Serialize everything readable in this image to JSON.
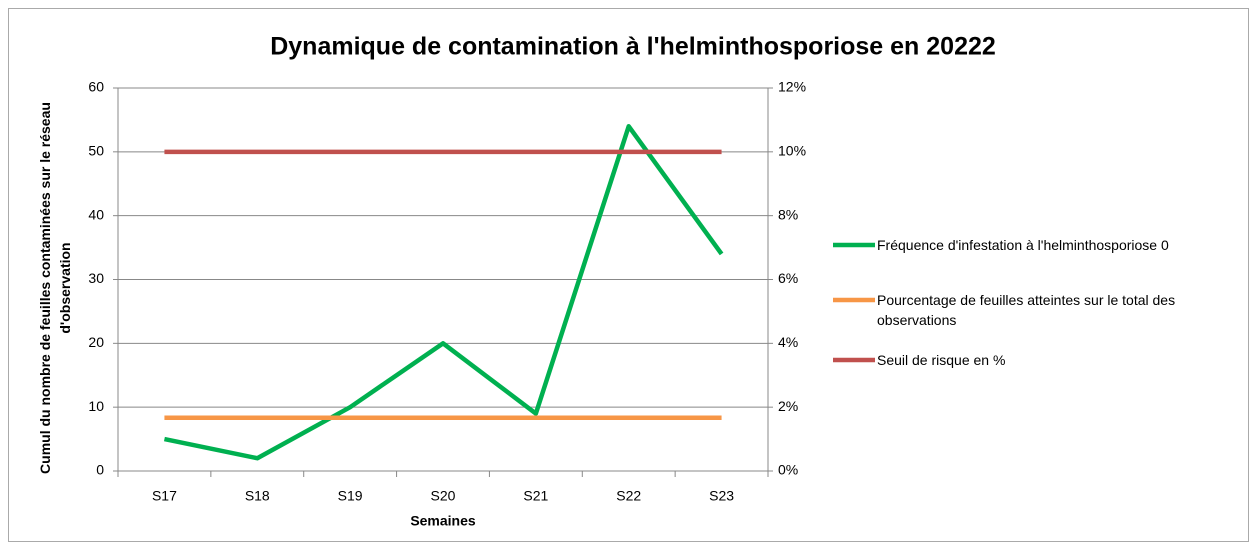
{
  "chart_data": {
    "type": "line",
    "title": "Dynamique de contamination à l'helminthosporiose en 20222",
    "xlabel": "Semaines",
    "ylabel": "Cumul du nombre de feuilles contaminées sur le réseau d'observation",
    "categories": [
      "S17",
      "S18",
      "S19",
      "S20",
      "S21",
      "S22",
      "S23"
    ],
    "series": [
      {
        "name": "Fréquence d'infestation à l'helminthosporiose 0",
        "color": "#00b050",
        "values": [
          5,
          2,
          10,
          20,
          9,
          54,
          34
        ]
      },
      {
        "name": "Pourcentage de feuilles atteintes sur le total des observations",
        "color": "#f79646",
        "axis": "y2",
        "values": [
          1.67,
          1.67,
          1.67,
          1.67,
          1.67,
          1.67,
          1.67
        ]
      },
      {
        "name": "Seuil de risque en %",
        "color": "#c0504d",
        "axis": "y2",
        "values": [
          10,
          10,
          10,
          10,
          10,
          10,
          10
        ]
      }
    ],
    "ylim": [
      0,
      60
    ],
    "yticks": [
      0,
      10,
      20,
      30,
      40,
      50,
      60
    ],
    "y2lim": [
      0,
      12
    ],
    "y2ticks": [
      {
        "value": 0,
        "label": "0%"
      },
      {
        "value": 2,
        "label": "2%"
      },
      {
        "value": 4,
        "label": "4%"
      },
      {
        "value": 6,
        "label": "6%"
      },
      {
        "value": 8,
        "label": "8%"
      },
      {
        "value": 10,
        "label": "10%"
      },
      {
        "value": 12,
        "label": "12%"
      }
    ],
    "grid": true,
    "legend": "right"
  }
}
